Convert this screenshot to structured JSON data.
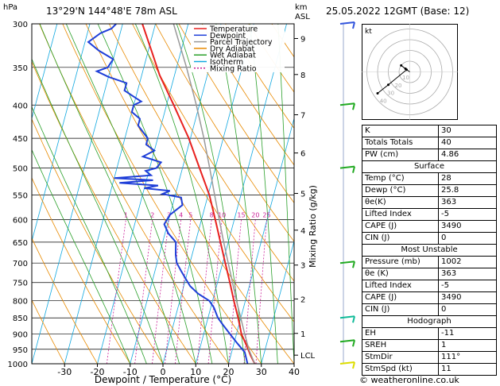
{
  "header": {
    "location": "13°29'N  144°48'E  78m  ASL",
    "datetime": "25.05.2022  12GMT  (Base: 12)",
    "hpa_unit": "hPa",
    "km_unit": "km",
    "asl_unit": "ASL",
    "copyright": "© weatheronline.co.uk"
  },
  "legend": [
    {
      "label": "Temperature",
      "color": "#e8211f"
    },
    {
      "label": "Dewpoint",
      "color": "#1f3fd8"
    },
    {
      "label": "Parcel Trajectory",
      "color": "#999999"
    },
    {
      "label": "Dry Adiabat",
      "color": "#e88a00"
    },
    {
      "label": "Wet Adiabat",
      "color": "#2aa02a"
    },
    {
      "label": "Isotherm",
      "color": "#10a8e0"
    },
    {
      "label": "Mixing Ratio",
      "color": "#cc2299"
    }
  ],
  "chart_data": {
    "type": "line",
    "xlabel": "Dewpoint / Temperature (°C)",
    "ylabel": "",
    "mixing_ratio_axis_label": "Mixing Ratio (g/kg)",
    "pressure_levels": [
      300,
      350,
      400,
      450,
      500,
      550,
      600,
      650,
      700,
      750,
      800,
      850,
      900,
      950,
      1000
    ],
    "x_ticks": [
      -30,
      -20,
      -10,
      0,
      10,
      20,
      30,
      40
    ],
    "xlim": [
      -40,
      40
    ],
    "ylim": [
      1000,
      300
    ],
    "skew_deg_per_decade": 53,
    "km_ticks": [
      {
        "label": "9",
        "p": 316
      },
      {
        "label": "8",
        "p": 359
      },
      {
        "label": "7",
        "p": 414
      },
      {
        "label": "6",
        "p": 474
      },
      {
        "label": "5",
        "p": 547
      },
      {
        "label": "4",
        "p": 623
      },
      {
        "label": "3",
        "p": 705
      },
      {
        "label": "2",
        "p": 795
      },
      {
        "label": "1",
        "p": 898
      },
      {
        "label": "LCL",
        "p": 970
      }
    ],
    "mixing_ratio_values": [
      1,
      2,
      3,
      4,
      5,
      8,
      10,
      15,
      20,
      25
    ],
    "mixing_ratio_labels": [
      "1",
      "2",
      "3",
      "4",
      "5",
      "8",
      "10",
      "15",
      "20",
      "25"
    ],
    "series": [
      {
        "key": "temperature",
        "color": "#e8211f",
        "points": [
          [
            1000,
            28
          ],
          [
            970,
            26
          ],
          [
            950,
            24.8
          ],
          [
            925,
            23.2
          ],
          [
            900,
            21.5
          ],
          [
            850,
            19.2
          ],
          [
            800,
            16.5
          ],
          [
            750,
            13.8
          ],
          [
            700,
            10.8
          ],
          [
            650,
            7.6
          ],
          [
            600,
            4.2
          ],
          [
            550,
            0.4
          ],
          [
            500,
            -4.8
          ],
          [
            450,
            -10.5
          ],
          [
            400,
            -17.8
          ],
          [
            360,
            -24.5
          ],
          [
            330,
            -29
          ],
          [
            300,
            -34
          ]
        ]
      },
      {
        "key": "dewpoint",
        "color": "#1f3fd8",
        "points": [
          [
            1000,
            25.8
          ],
          [
            960,
            24
          ],
          [
            930,
            21
          ],
          [
            900,
            18
          ],
          [
            870,
            15
          ],
          [
            850,
            13
          ],
          [
            820,
            11
          ],
          [
            800,
            9
          ],
          [
            780,
            5
          ],
          [
            760,
            2
          ],
          [
            740,
            0
          ],
          [
            720,
            -2
          ],
          [
            700,
            -4
          ],
          [
            680,
            -5
          ],
          [
            650,
            -6
          ],
          [
            630,
            -9
          ],
          [
            610,
            -11
          ],
          [
            590,
            -10
          ],
          [
            570,
            -7
          ],
          [
            555,
            -8
          ],
          [
            548,
            -14
          ],
          [
            542,
            -12
          ],
          [
            537,
            -20
          ],
          [
            532,
            -16
          ],
          [
            527,
            -28
          ],
          [
            522,
            -18
          ],
          [
            518,
            -30
          ],
          [
            513,
            -19
          ],
          [
            505,
            -21
          ],
          [
            500,
            -18
          ],
          [
            490,
            -17
          ],
          [
            480,
            -23
          ],
          [
            470,
            -20
          ],
          [
            460,
            -23
          ],
          [
            450,
            -23
          ],
          [
            440,
            -25
          ],
          [
            430,
            -27
          ],
          [
            420,
            -27
          ],
          [
            410,
            -30
          ],
          [
            400,
            -30
          ],
          [
            395,
            -28
          ],
          [
            390,
            -30
          ],
          [
            380,
            -34
          ],
          [
            370,
            -34
          ],
          [
            362,
            -40
          ],
          [
            355,
            -44
          ],
          [
            350,
            -41
          ],
          [
            340,
            -40
          ],
          [
            330,
            -45
          ],
          [
            320,
            -49
          ],
          [
            310,
            -46
          ],
          [
            305,
            -43
          ],
          [
            300,
            -42
          ]
        ]
      },
      {
        "key": "parcel",
        "color": "#999999",
        "points": [
          [
            1000,
            28
          ],
          [
            970,
            26.2
          ],
          [
            950,
            25
          ],
          [
            900,
            22.5
          ],
          [
            850,
            20
          ],
          [
            800,
            17.3
          ],
          [
            750,
            14.6
          ],
          [
            700,
            11.7
          ],
          [
            650,
            8.6
          ],
          [
            600,
            5.4
          ],
          [
            550,
            2
          ],
          [
            500,
            -1.7
          ],
          [
            450,
            -5.9
          ],
          [
            400,
            -10.9
          ],
          [
            350,
            -17
          ],
          [
            300,
            -24.5
          ]
        ]
      }
    ]
  },
  "hodograph": {
    "label": "kt",
    "ring_labels": [
      "40",
      "30",
      "20",
      "10"
    ],
    "trace_kt": [
      [
        -4,
        3
      ],
      [
        -8,
        6
      ],
      [
        -3,
        2
      ],
      [
        -20,
        -12
      ],
      [
        -30,
        -20
      ]
    ]
  },
  "indices": {
    "rows": [
      {
        "label": "K",
        "value": "30"
      },
      {
        "label": "Totals Totals",
        "value": "40"
      },
      {
        "label": "PW (cm)",
        "value": "4.86"
      }
    ],
    "surface_title": "Surface",
    "surface": [
      {
        "label": "Temp (°C)",
        "value": "28"
      },
      {
        "label": "Dewp (°C)",
        "value": "25.8"
      },
      {
        "label": "θe(K)",
        "value": "363"
      },
      {
        "label": "Lifted Index",
        "value": "-5"
      },
      {
        "label": "CAPE (J)",
        "value": "3490"
      },
      {
        "label": "CIN (J)",
        "value": "0"
      }
    ],
    "unstable_title": "Most Unstable",
    "unstable": [
      {
        "label": "Pressure (mb)",
        "value": "1002"
      },
      {
        "label": "θe (K)",
        "value": "363"
      },
      {
        "label": "Lifted Index",
        "value": "-5"
      },
      {
        "label": "CAPE (J)",
        "value": "3490"
      },
      {
        "label": "CIN (J)",
        "value": "0"
      }
    ],
    "hodo_title": "Hodograph",
    "hodo": [
      {
        "label": "EH",
        "value": "-11"
      },
      {
        "label": "SREH",
        "value": "1"
      },
      {
        "label": "StmDir",
        "value": "111°"
      },
      {
        "label": "StmSpd (kt)",
        "value": "11"
      }
    ]
  },
  "wind_barbs": [
    {
      "p": 300,
      "color": "#3355dd"
    },
    {
      "p": 400,
      "color": "#22aa22"
    },
    {
      "p": 500,
      "color": "#22aa22"
    },
    {
      "p": 700,
      "color": "#22aa22"
    },
    {
      "p": 850,
      "color": "#11bb99"
    },
    {
      "p": 925,
      "color": "#22aa22"
    },
    {
      "p": 1000,
      "color": "#dddd00"
    }
  ]
}
